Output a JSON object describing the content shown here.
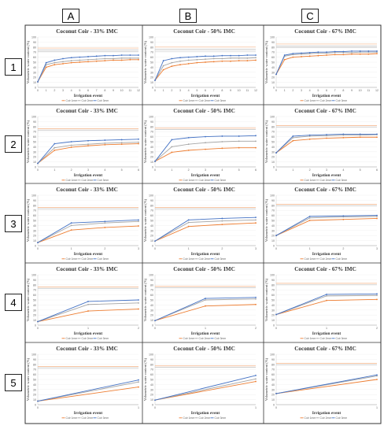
{
  "column_labels": [
    "A",
    "B",
    "C"
  ],
  "row_labels": [
    "1",
    "2",
    "3",
    "4",
    "5"
  ],
  "panel_ylabel": "Volumetric water content (%)",
  "panel_xlabel": "Irrigation event",
  "legend": [
    "Coir 1mm",
    "Coir 2mm",
    "Coir 3mm"
  ],
  "colors": {
    "s1": "#ed7d31",
    "s2": "#a5a5a5",
    "s3": "#4472c4",
    "ref_orange": "#f4b183",
    "ref_gray": "#bfbfbf"
  },
  "chart_data": [
    {
      "type": "line",
      "title": "Coconut Coir - 33% IMC",
      "xlabel": "Irrigation event",
      "ylabel": "Volumetric water content (%)",
      "ylim": [
        0,
        100
      ],
      "x": [
        0,
        1,
        2,
        3,
        4,
        5,
        6,
        7,
        8,
        9,
        10,
        11,
        12
      ],
      "ref_lines": [
        78,
        74,
        71
      ],
      "series": [
        {
          "name": "Coir 1mm",
          "values": [
            11,
            40,
            45,
            47,
            49,
            50,
            51,
            52,
            53,
            54,
            54,
            55,
            55
          ]
        },
        {
          "name": "Coir 2mm",
          "values": [
            11,
            45,
            49,
            51,
            53,
            54,
            55,
            56,
            57,
            57,
            58,
            58,
            58
          ]
        },
        {
          "name": "Coir 3mm",
          "values": [
            11,
            49,
            54,
            57,
            59,
            60,
            61,
            62,
            63,
            63,
            64,
            64,
            64
          ]
        }
      ]
    },
    {
      "type": "line",
      "title": "Coconut Coir - 50% IMC",
      "xlabel": "Irrigation event",
      "ylabel": "Volumetric water content (%)",
      "ylim": [
        0,
        100
      ],
      "x": [
        0,
        1,
        2,
        3,
        4,
        5,
        6,
        7,
        8,
        9,
        10,
        11,
        12
      ],
      "ref_lines": [
        80,
        76,
        72
      ],
      "series": [
        {
          "name": "Coir 1mm",
          "values": [
            14,
            35,
            42,
            45,
            47,
            49,
            50,
            51,
            52,
            52,
            53,
            53,
            54
          ]
        },
        {
          "name": "Coir 2mm",
          "values": [
            14,
            43,
            49,
            52,
            54,
            55,
            56,
            57,
            57,
            58,
            58,
            58,
            59
          ]
        },
        {
          "name": "Coir 3mm",
          "values": [
            14,
            53,
            57,
            59,
            60,
            61,
            62,
            62,
            63,
            63,
            63,
            64,
            64
          ]
        }
      ]
    },
    {
      "type": "line",
      "title": "Coconut Coir - 67% IMC",
      "xlabel": "Irrigation event",
      "ylabel": "Volumetric water content (%)",
      "ylim": [
        0,
        100
      ],
      "x": [
        0,
        1,
        2,
        3,
        4,
        5,
        6,
        7,
        8,
        9,
        10,
        11,
        12
      ],
      "ref_lines": [
        86,
        82,
        79
      ],
      "series": [
        {
          "name": "Coir 1mm",
          "values": [
            26,
            55,
            60,
            61,
            62,
            63,
            64,
            65,
            65,
            66,
            66,
            66,
            67
          ]
        },
        {
          "name": "Coir 2mm",
          "values": [
            26,
            62,
            65,
            66,
            67,
            68,
            68,
            69,
            69,
            69,
            70,
            70,
            70
          ]
        },
        {
          "name": "Coir 3mm",
          "values": [
            26,
            64,
            67,
            68,
            69,
            70,
            70,
            71,
            71,
            72,
            72,
            72,
            72
          ]
        }
      ]
    },
    {
      "type": "line",
      "title": "Coconut Coir - 33% IMC",
      "xlabel": "Irrigation event",
      "ylabel": "Volumetric water content (%)",
      "ylim": [
        0,
        100
      ],
      "x": [
        0,
        1,
        2,
        3,
        4,
        5,
        6
      ],
      "ref_lines": [
        76,
        73
      ],
      "series": [
        {
          "name": "Coir 1mm",
          "values": [
            7,
            33,
            39,
            42,
            44,
            45,
            46
          ]
        },
        {
          "name": "Coir 2mm",
          "values": [
            7,
            38,
            43,
            45,
            47,
            48,
            49
          ]
        },
        {
          "name": "Coir 3mm",
          "values": [
            7,
            46,
            50,
            52,
            53,
            54,
            55
          ]
        }
      ]
    },
    {
      "type": "line",
      "title": "Coconut Coir - 50% IMC",
      "xlabel": "Irrigation event",
      "ylabel": "Volumetric water content (%)",
      "ylim": [
        0,
        100
      ],
      "x": [
        0,
        1,
        2,
        3,
        4,
        5,
        6
      ],
      "ref_lines": [
        77,
        74
      ],
      "series": [
        {
          "name": "Coir 1mm",
          "values": [
            11,
            29,
            33,
            35,
            37,
            38,
            38
          ]
        },
        {
          "name": "Coir 2mm",
          "values": [
            11,
            40,
            45,
            48,
            50,
            51,
            51
          ]
        },
        {
          "name": "Coir 3mm",
          "values": [
            11,
            54,
            58,
            60,
            61,
            61,
            62
          ]
        }
      ]
    },
    {
      "type": "line",
      "title": "Coconut Coir - 67% IMC",
      "xlabel": "Irrigation event",
      "ylabel": "Volumetric water content (%)",
      "ylim": [
        0,
        100
      ],
      "x": [
        0,
        1,
        2,
        3,
        4,
        5,
        6
      ],
      "ref_lines": [
        82,
        79
      ],
      "series": [
        {
          "name": "Coir 1mm",
          "values": [
            28,
            52,
            55,
            57,
            58,
            59,
            59
          ]
        },
        {
          "name": "Coir 2mm",
          "values": [
            28,
            58,
            61,
            62,
            63,
            63,
            64
          ]
        },
        {
          "name": "Coir 3mm",
          "values": [
            28,
            61,
            63,
            64,
            65,
            65,
            65
          ]
        }
      ]
    },
    {
      "type": "line",
      "title": "Coconut Coir - 33% IMC",
      "xlabel": "Irrigation event",
      "ylabel": "Volumetric water content (%)",
      "ylim": [
        0,
        100
      ],
      "x": [
        0,
        1,
        2,
        3
      ],
      "ref_lines": [
        76,
        73
      ],
      "series": [
        {
          "name": "Coir 1mm",
          "values": [
            6,
            31,
            36,
            39
          ]
        },
        {
          "name": "Coir 2mm",
          "values": [
            6,
            40,
            45,
            48
          ]
        },
        {
          "name": "Coir 3mm",
          "values": [
            6,
            45,
            48,
            51
          ]
        }
      ]
    },
    {
      "type": "line",
      "title": "Coconut Coir - 50% IMC",
      "xlabel": "Irrigation event",
      "ylabel": "Volumetric water content (%)",
      "ylim": [
        0,
        100
      ],
      "x": [
        0,
        1,
        2,
        3
      ],
      "ref_lines": [
        76,
        73
      ],
      "series": [
        {
          "name": "Coir 1mm",
          "values": [
            9,
            38,
            42,
            45
          ]
        },
        {
          "name": "Coir 2mm",
          "values": [
            9,
            46,
            49,
            51
          ]
        },
        {
          "name": "Coir 3mm",
          "values": [
            9,
            51,
            54,
            56
          ]
        }
      ]
    },
    {
      "type": "line",
      "title": "Coconut Coir - 67% IMC",
      "xlabel": "Irrigation event",
      "ylabel": "Volumetric water content (%)",
      "ylim": [
        0,
        100
      ],
      "x": [
        0,
        1,
        2,
        3
      ],
      "ref_lines": [
        82,
        79
      ],
      "series": [
        {
          "name": "Coir 1mm",
          "values": [
            20,
            50,
            52,
            54
          ]
        },
        {
          "name": "Coir 2mm",
          "values": [
            20,
            55,
            57,
            58
          ]
        },
        {
          "name": "Coir 3mm",
          "values": [
            20,
            58,
            59,
            60
          ]
        }
      ]
    },
    {
      "type": "line",
      "title": "Coconut Coir - 33% IMC",
      "xlabel": "Irrigation event",
      "ylabel": "Volumetric water content (%)",
      "ylim": [
        0,
        100
      ],
      "x": [
        0,
        1,
        2
      ],
      "ref_lines": [
        76,
        73
      ],
      "series": [
        {
          "name": "Coir 1mm",
          "values": [
            7,
            28,
            32
          ]
        },
        {
          "name": "Coir 2mm",
          "values": [
            7,
            41,
            44
          ]
        },
        {
          "name": "Coir 3mm",
          "values": [
            7,
            47,
            50
          ]
        }
      ]
    },
    {
      "type": "line",
      "title": "Coconut Coir - 50% IMC",
      "xlabel": "Irrigation event",
      "ylabel": "Volumetric water content (%)",
      "ylim": [
        0,
        100
      ],
      "x": [
        0,
        1,
        2
      ],
      "ref_lines": [
        77,
        74
      ],
      "series": [
        {
          "name": "Coir 1mm",
          "values": [
            9,
            38,
            41
          ]
        },
        {
          "name": "Coir 2mm",
          "values": [
            9,
            50,
            52
          ]
        },
        {
          "name": "Coir 3mm",
          "values": [
            9,
            53,
            55
          ]
        }
      ]
    },
    {
      "type": "line",
      "title": "Coconut Coir - 67% IMC",
      "xlabel": "Irrigation event",
      "ylabel": "Volumetric water content (%)",
      "ylim": [
        0,
        100
      ],
      "x": [
        0,
        1,
        2
      ],
      "ref_lines": [
        83,
        80
      ],
      "series": [
        {
          "name": "Coir 1mm",
          "values": [
            21,
            49,
            51
          ]
        },
        {
          "name": "Coir 2mm",
          "values": [
            21,
            58,
            59
          ]
        },
        {
          "name": "Coir 3mm",
          "values": [
            21,
            61,
            62
          ]
        }
      ]
    },
    {
      "type": "line",
      "title": "Coconut Coir - 33% IMC",
      "xlabel": "Irrigation event",
      "ylabel": "Volumetric water content (%)",
      "ylim": [
        0,
        100
      ],
      "x": [
        0,
        1
      ],
      "ref_lines": [
        76,
        73
      ],
      "series": [
        {
          "name": "Coir 1mm",
          "values": [
            7,
            35
          ]
        },
        {
          "name": "Coir 2mm",
          "values": [
            7,
            45
          ]
        },
        {
          "name": "Coir 3mm",
          "values": [
            7,
            49
          ]
        }
      ]
    },
    {
      "type": "line",
      "title": "Coconut Coir - 50% IMC",
      "xlabel": "Irrigation event",
      "ylabel": "Volumetric water content (%)",
      "ylim": [
        0,
        100
      ],
      "x": [
        0,
        1
      ],
      "ref_lines": [
        77,
        74
      ],
      "series": [
        {
          "name": "Coir 1mm",
          "values": [
            9,
            46
          ]
        },
        {
          "name": "Coir 2mm",
          "values": [
            9,
            51
          ]
        },
        {
          "name": "Coir 3mm",
          "values": [
            9,
            58
          ]
        }
      ]
    },
    {
      "type": "line",
      "title": "Coconut Coir - 67% IMC",
      "xlabel": "Irrigation event",
      "ylabel": "Volumetric water content (%)",
      "ylim": [
        0,
        100
      ],
      "x": [
        0,
        1
      ],
      "ref_lines": [
        82,
        79
      ],
      "series": [
        {
          "name": "Coir 1mm",
          "values": [
            22,
            50
          ]
        },
        {
          "name": "Coir 2mm",
          "values": [
            22,
            57
          ]
        },
        {
          "name": "Coir 3mm",
          "values": [
            22,
            59
          ]
        }
      ]
    }
  ]
}
